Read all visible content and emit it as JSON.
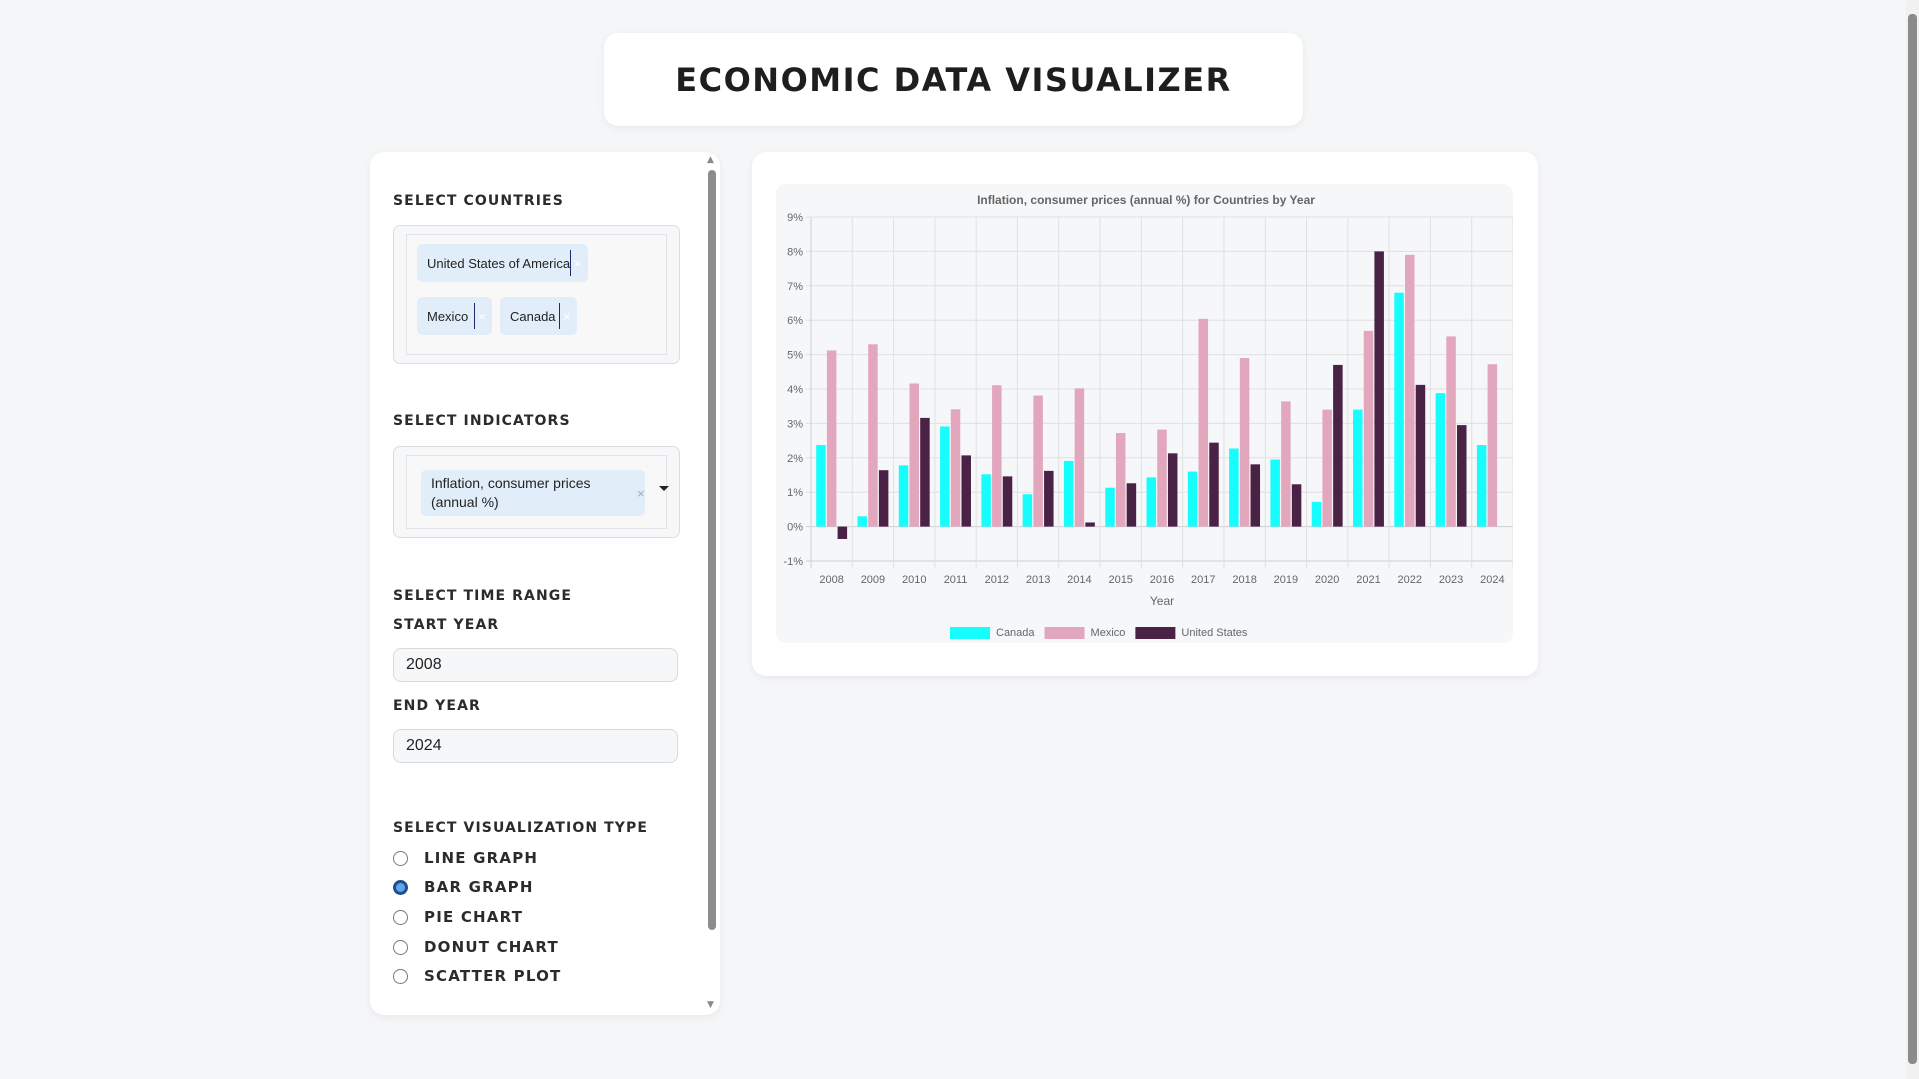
{
  "header": {
    "title": "ECONOMIC DATA VISUALIZER"
  },
  "sidebar": {
    "countries_label": "SELECT COUNTRIES",
    "countries": [
      "United States of America",
      "Mexico",
      "Canada"
    ],
    "indicators_label": "SELECT INDICATORS",
    "indicator": "Inflation, consumer prices (annual %)",
    "time_range_label": "SELECT TIME RANGE",
    "start_year_label": "START YEAR",
    "start_year": "2008",
    "end_year_label": "END YEAR",
    "end_year": "2024",
    "viz_label": "SELECT VISUALIZATION TYPE",
    "viz_options": [
      "LINE GRAPH",
      "BAR GRAPH",
      "PIE CHART",
      "DONUT CHART",
      "SCATTER PLOT"
    ],
    "viz_selected": "BAR GRAPH",
    "remove_glyph": "×"
  },
  "chart_data": {
    "type": "bar",
    "title": "Inflation, consumer prices (annual %) for Countries by Year",
    "xlabel": "Year",
    "ylabel": "",
    "ylim": [
      -1,
      9
    ],
    "yticks": [
      "-1%",
      "0%",
      "1%",
      "2%",
      "3%",
      "4%",
      "5%",
      "6%",
      "7%",
      "8%",
      "9%"
    ],
    "grid": true,
    "legend": "bottom",
    "categories": [
      "2008",
      "2009",
      "2010",
      "2011",
      "2012",
      "2013",
      "2014",
      "2015",
      "2016",
      "2017",
      "2018",
      "2019",
      "2020",
      "2021",
      "2022",
      "2023",
      "2024"
    ],
    "series": [
      {
        "name": "Canada",
        "color": "#17fdfd",
        "values": [
          2.37,
          0.3,
          1.78,
          2.91,
          1.52,
          0.94,
          1.91,
          1.13,
          1.43,
          1.6,
          2.27,
          1.95,
          0.72,
          3.4,
          6.8,
          3.88,
          2.37
        ]
      },
      {
        "name": "Mexico",
        "color": "#e2a7bc",
        "values": [
          5.12,
          5.3,
          4.16,
          3.41,
          4.11,
          3.81,
          4.02,
          2.72,
          2.82,
          6.04,
          4.9,
          3.64,
          3.4,
          5.69,
          7.9,
          5.53,
          4.72
        ]
      },
      {
        "name": "United States",
        "color": "#4a2245",
        "values": [
          -0.36,
          1.64,
          3.16,
          2.07,
          1.46,
          1.62,
          0.12,
          1.26,
          2.13,
          2.44,
          1.81,
          1.23,
          4.7,
          8.0,
          4.12,
          2.95,
          null
        ]
      }
    ]
  }
}
